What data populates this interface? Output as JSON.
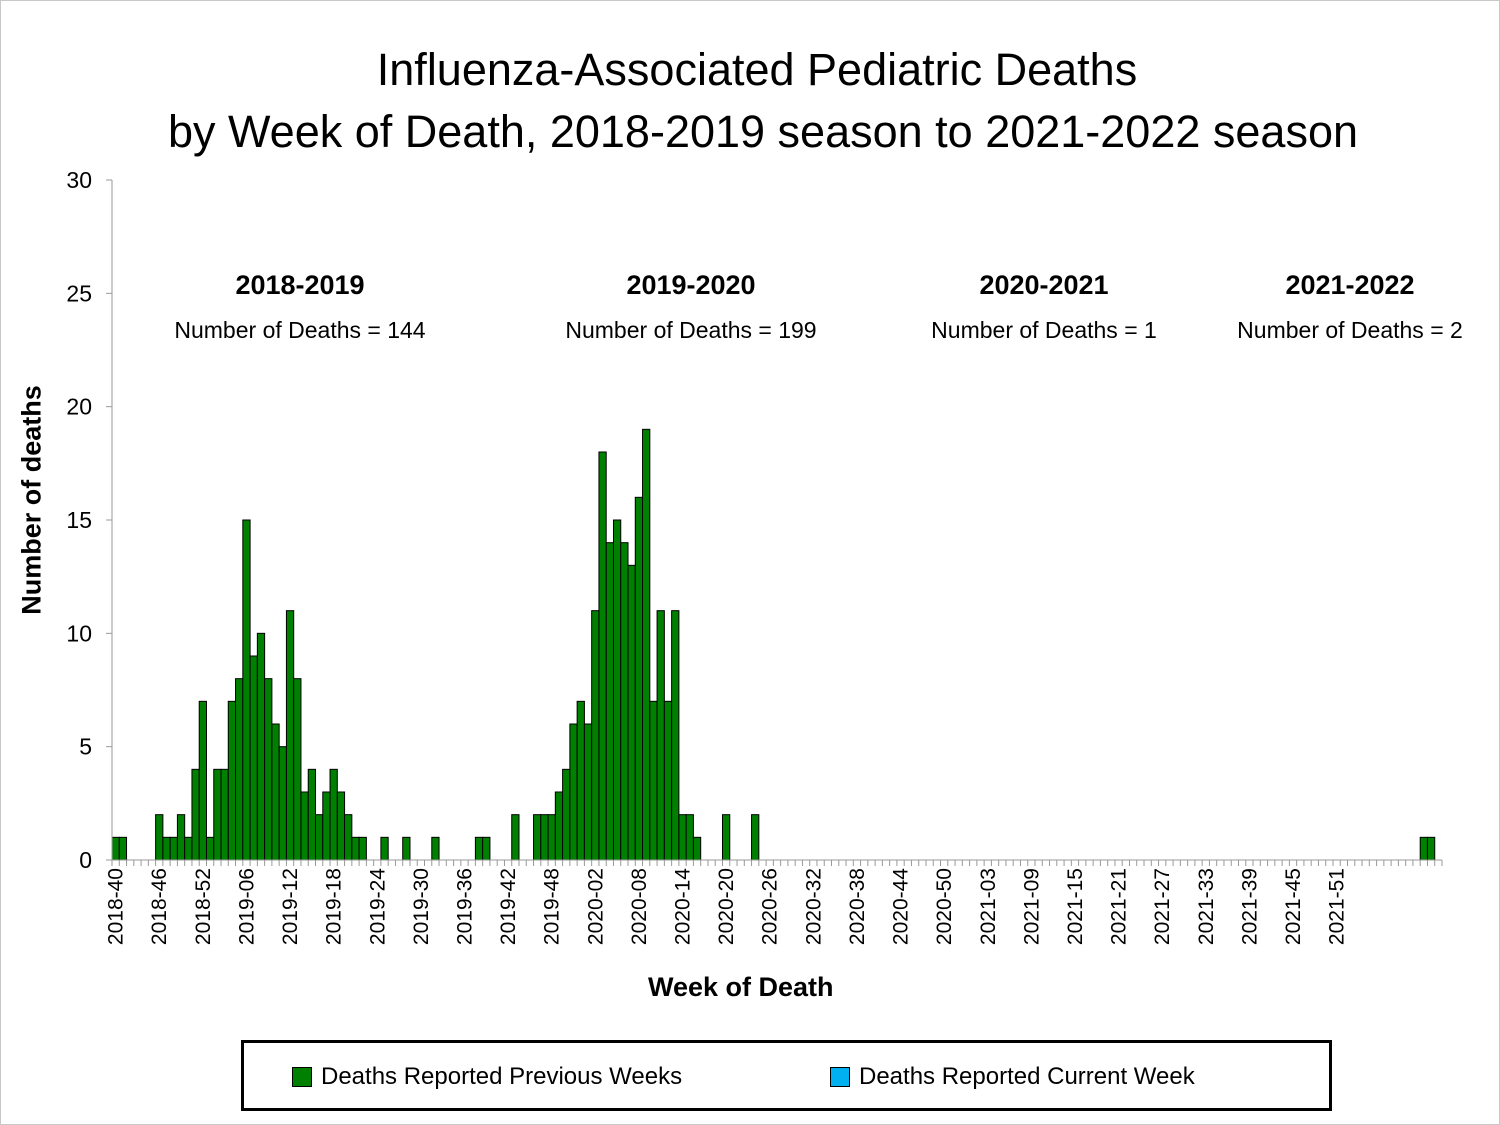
{
  "chart_data": {
    "type": "bar",
    "title": "Influenza-Associated Pediatric Deaths",
    "subtitle": "by Week of Death, 2018-2019 season to 2021-2022 season",
    "xlabel": "Week of Death",
    "ylabel": "Number of deaths",
    "ylim": [
      0,
      30
    ],
    "yticks": [
      0,
      5,
      10,
      15,
      20,
      25,
      30
    ],
    "grid": false,
    "legend_placement": "bottom",
    "xtick_labels": [
      "2018-40",
      "2018-46",
      "2018-52",
      "2019-06",
      "2019-12",
      "2019-18",
      "2019-24",
      "2019-30",
      "2019-36",
      "2019-42",
      "2019-48",
      "2020-02",
      "2020-08",
      "2020-14",
      "2020-20",
      "2020-26",
      "2020-32",
      "2020-38",
      "2020-44",
      "2020-50",
      "2021-03",
      "2021-09",
      "2021-15",
      "2021-21",
      "2021-27",
      "2021-33",
      "2021-39",
      "2021-45",
      "2021-51"
    ],
    "series": [
      {
        "name": "Deaths Reported Previous Weeks",
        "color": "#008000",
        "values": [
          1,
          1,
          0,
          0,
          0,
          0,
          2,
          1,
          1,
          2,
          1,
          4,
          7,
          1,
          4,
          4,
          7,
          8,
          15,
          9,
          10,
          8,
          6,
          5,
          11,
          8,
          3,
          4,
          2,
          3,
          4,
          3,
          2,
          1,
          1,
          0,
          0,
          1,
          0,
          0,
          1,
          0,
          0,
          0,
          1,
          0,
          0,
          0,
          0,
          0,
          1,
          1,
          0,
          0,
          0,
          2,
          0,
          0,
          2,
          2,
          2,
          3,
          4,
          6,
          7,
          6,
          11,
          18,
          14,
          15,
          14,
          13,
          16,
          19,
          7,
          11,
          7,
          11,
          2,
          2,
          1,
          0,
          0,
          0,
          2,
          0,
          0,
          0,
          2,
          0,
          0,
          0,
          0,
          0,
          0,
          0,
          0,
          0,
          0,
          0,
          0,
          0,
          0,
          0,
          0,
          0,
          0,
          0,
          0,
          0,
          0,
          0,
          0,
          0,
          0,
          0,
          0,
          0,
          0,
          0,
          0,
          0,
          0,
          0,
          0,
          0,
          0,
          0,
          0,
          0,
          0,
          0,
          0,
          0,
          0,
          0,
          0,
          0,
          0,
          0,
          0,
          0,
          0,
          0,
          0,
          0,
          0,
          0,
          0,
          0,
          0,
          0,
          0,
          0,
          0,
          0,
          0,
          0,
          0,
          0,
          0,
          0,
          0,
          0,
          0,
          0,
          0,
          0,
          0,
          0,
          0,
          0,
          0,
          0,
          0,
          0,
          0,
          0,
          0,
          0,
          1,
          1,
          0
        ]
      },
      {
        "name": "Deaths Reported Current Week",
        "color": "#00b0f0",
        "values": []
      }
    ],
    "annotations": [
      {
        "season": "2018-2019",
        "text": "Number of Deaths = 144"
      },
      {
        "season": "2019-2020",
        "text": "Number of Deaths = 199"
      },
      {
        "season": "2020-2021",
        "text": "Number of Deaths = 1"
      },
      {
        "season": "2021-2022",
        "text": "Number of Deaths = 2"
      }
    ]
  }
}
